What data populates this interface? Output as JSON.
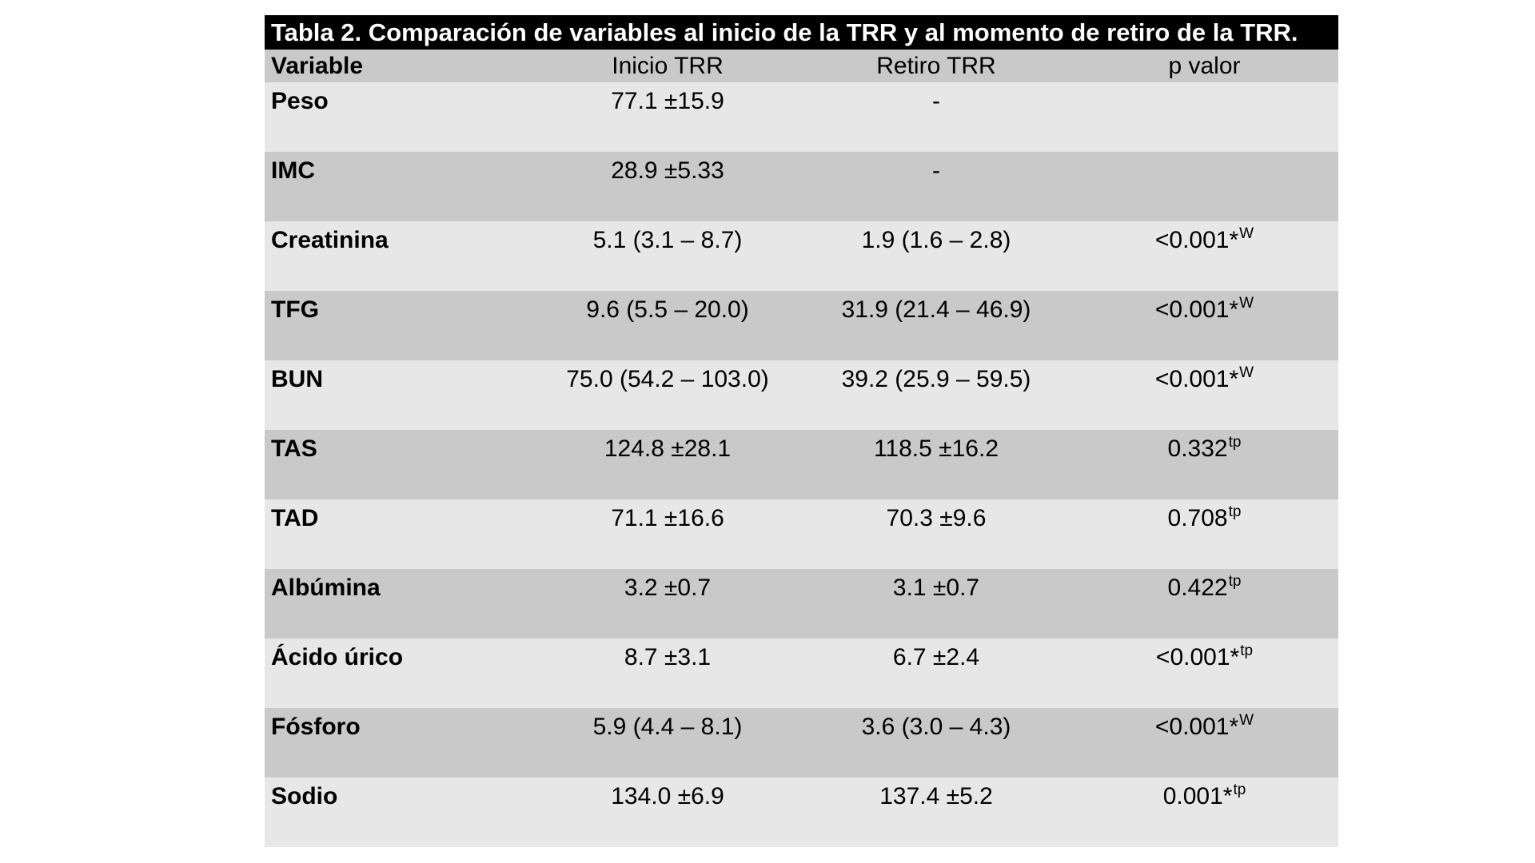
{
  "table": {
    "title": "Tabla 2. Comparación de variables al inicio de la TRR y al momento de retiro de la TRR.",
    "headers": {
      "variable": "Variable",
      "inicio": "Inicio TRR",
      "retiro": "Retiro TRR",
      "p": "p valor"
    },
    "rows": [
      {
        "variable": "Peso",
        "inicio": "77.1 ±15.9",
        "retiro": "-",
        "p": "",
        "p_sup": ""
      },
      {
        "variable": "IMC",
        "inicio": "28.9 ±5.33",
        "retiro": "-",
        "p": "",
        "p_sup": ""
      },
      {
        "variable": "Creatinina",
        "inicio": "5.1 (3.1 – 8.7)",
        "retiro": "1.9 (1.6 – 2.8)",
        "p": "<0.001*",
        "p_sup": "W"
      },
      {
        "variable": "TFG",
        "inicio": "9.6 (5.5 – 20.0)",
        "retiro": "31.9 (21.4 – 46.9)",
        "p": "<0.001*",
        "p_sup": "W"
      },
      {
        "variable": "BUN",
        "inicio": "75.0 (54.2 – 103.0)",
        "retiro": "39.2 (25.9 – 59.5)",
        "p": "<0.001*",
        "p_sup": "W"
      },
      {
        "variable": "TAS",
        "inicio": "124.8 ±28.1",
        "retiro": "118.5 ±16.2",
        "p": "0.332",
        "p_sup": "tp"
      },
      {
        "variable": "TAD",
        "inicio": "71.1 ±16.6",
        "retiro": "70.3 ±9.6",
        "p": "0.708",
        "p_sup": "tp"
      },
      {
        "variable": "Albúmina",
        "inicio": "3.2 ±0.7",
        "retiro": "3.1 ±0.7",
        "p": "0.422",
        "p_sup": "tp"
      },
      {
        "variable": "Ácido úrico",
        "inicio": "8.7 ±3.1",
        "retiro": "6.7 ±2.4",
        "p": "<0.001*",
        "p_sup": "tp"
      },
      {
        "variable": "Fósforo",
        "inicio": "5.9 (4.4 – 8.1)",
        "retiro": "3.6 (3.0 – 4.3)",
        "p": "<0.001*",
        "p_sup": "W"
      },
      {
        "variable": "Sodio",
        "inicio": "134.0 ±6.9",
        "retiro": "137.4 ±5.2",
        "p": "0.001*",
        "p_sup": "tp"
      }
    ]
  },
  "colors": {
    "title_bg": "#000000",
    "title_fg": "#ffffff",
    "row_dark": "#c9c9c9",
    "row_light": "#e7e7e7"
  }
}
